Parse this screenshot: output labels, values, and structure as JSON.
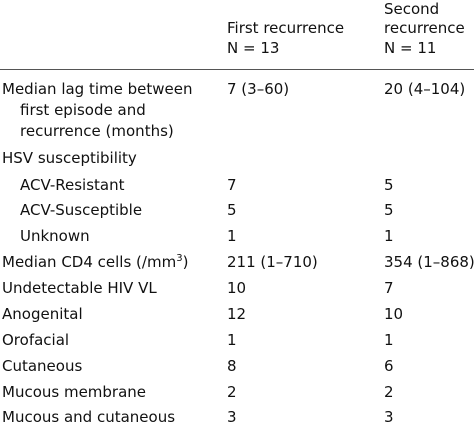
{
  "header": {
    "col1_line1": "First recurrence",
    "col1_line2": "N = 13",
    "col2_line1": "Second",
    "col2_line2": "recurrence",
    "col2_line3": "N = 11"
  },
  "rows": [
    {
      "label": "Median lag time between",
      "label2": "first episode and",
      "label3": "recurrence (months)",
      "first": "7 (3–60)",
      "second": "20 (4–104)"
    },
    {
      "label": "HSV susceptibility",
      "first": "",
      "second": ""
    },
    {
      "label": "ACV-Resistant",
      "first": "7",
      "second": "5"
    },
    {
      "label": "ACV-Susceptible",
      "first": "5",
      "second": "5"
    },
    {
      "label": "Unknown",
      "first": "1",
      "second": "1"
    },
    {
      "label": "Median CD4 cells (/mm",
      "label_sup": "3",
      "label_end": ")",
      "first": "211 (1–710)",
      "second": "354 (1–868)"
    },
    {
      "label": "Undetectable HIV VL",
      "first": "10",
      "second": "7"
    },
    {
      "label": "Anogenital",
      "first": "12",
      "second": "10"
    },
    {
      "label": "Orofacial",
      "first": "1",
      "second": "1"
    },
    {
      "label": "Cutaneous",
      "first": "8",
      "second": "6"
    },
    {
      "label": "Mucous membrane",
      "first": "2",
      "second": "2"
    },
    {
      "label": "Mucous and cutaneous",
      "first": "3",
      "second": "3"
    }
  ]
}
